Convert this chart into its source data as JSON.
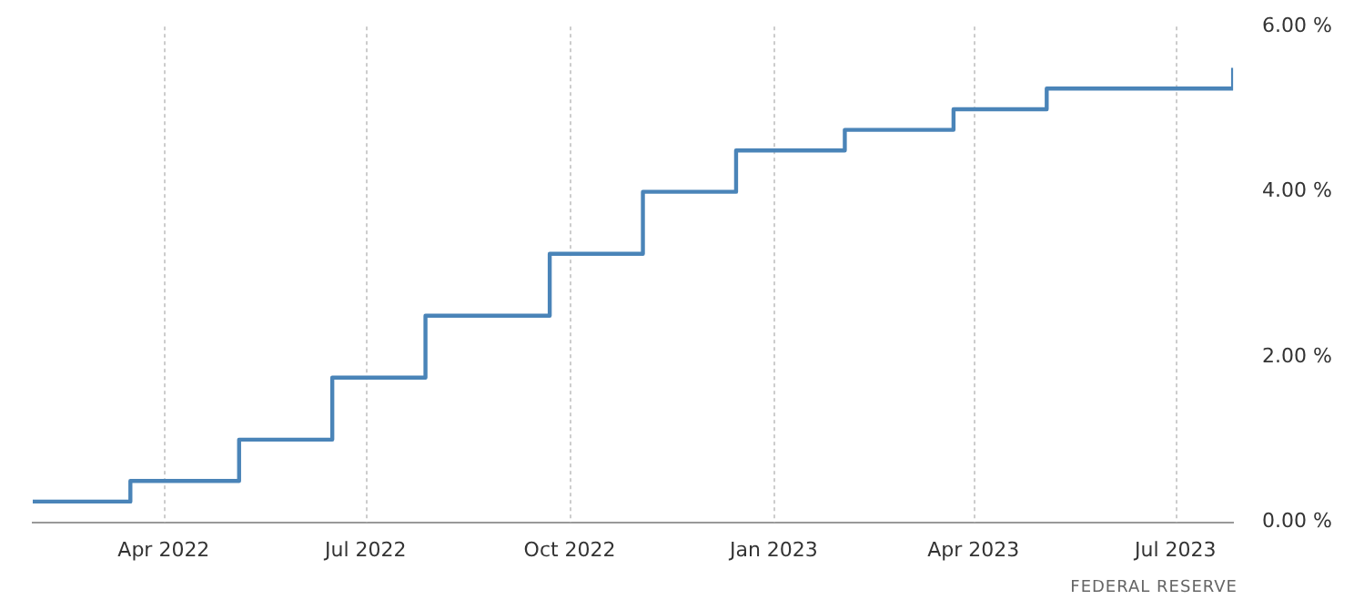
{
  "chart_data": {
    "type": "step",
    "x": [
      "2022-02-01",
      "2022-03-17",
      "2022-05-05",
      "2022-06-16",
      "2022-07-28",
      "2022-09-22",
      "2022-11-03",
      "2022-12-15",
      "2023-02-02",
      "2023-03-23",
      "2023-05-04",
      "2023-07-27"
    ],
    "series": [
      {
        "color": "#4a84b8",
        "values": [
          0.25,
          0.5,
          1.0,
          1.75,
          2.5,
          3.25,
          4.0,
          4.5,
          4.75,
          5.0,
          5.25,
          5.5
        ]
      }
    ],
    "xlim": [
      "2022-02-01",
      "2023-07-27"
    ],
    "xticks": [
      {
        "value": "2022-04-01",
        "label": "Apr 2022"
      },
      {
        "value": "2022-07-01",
        "label": "Jul 2022"
      },
      {
        "value": "2022-10-01",
        "label": "Oct 2022"
      },
      {
        "value": "2023-01-01",
        "label": "Jan 2023"
      },
      {
        "value": "2023-04-01",
        "label": "Apr 2023"
      },
      {
        "value": "2023-07-01",
        "label": "Jul 2023"
      }
    ],
    "ylim": [
      0,
      6
    ],
    "yticks": [
      {
        "value": 0,
        "label": "0.00 %"
      },
      {
        "value": 2,
        "label": "2.00 %"
      },
      {
        "value": 4,
        "label": "4.00 %"
      },
      {
        "value": 6,
        "label": "6.00 %"
      }
    ],
    "grid": "x",
    "annotations": [
      "FEDERAL RESERVE"
    ]
  }
}
